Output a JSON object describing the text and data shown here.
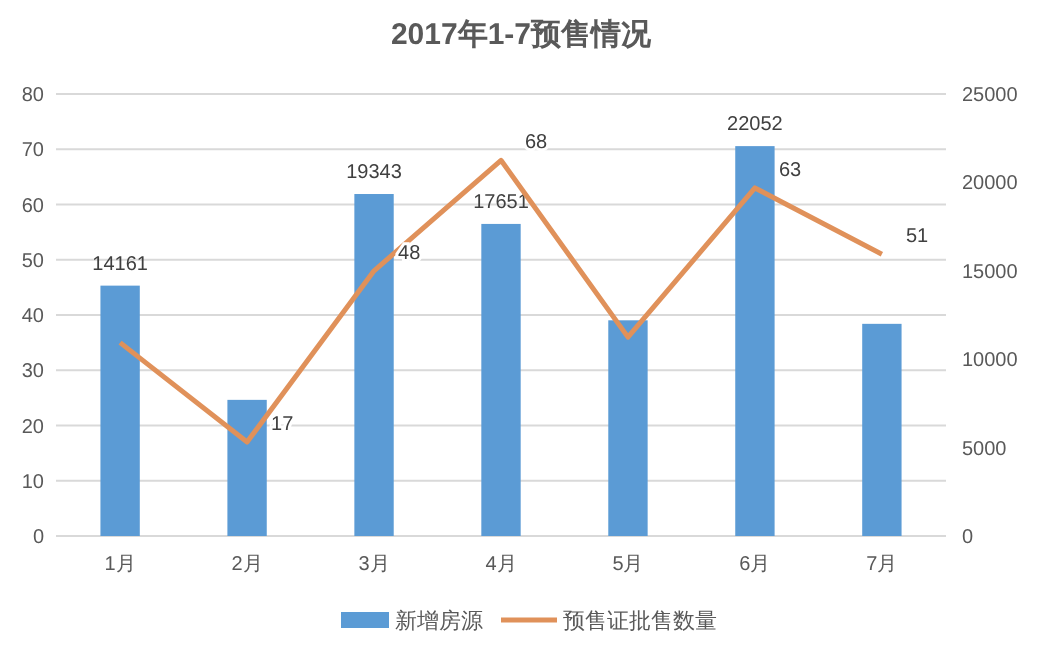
{
  "chart_data": {
    "type": "bar",
    "title": "2017年1-7预售情况",
    "categories": [
      "1月",
      "2月",
      "3月",
      "4月",
      "5月",
      "6月",
      "7月"
    ],
    "series": [
      {
        "name": "新增房源",
        "axis": "y2",
        "color": "#5b9bd5",
        "values": [
          14161,
          7700,
          19343,
          17651,
          12200,
          22052,
          12000
        ],
        "value_labels": [
          "14161",
          null,
          "19343",
          "17651",
          null,
          "22052",
          null
        ]
      },
      {
        "name": "预售证批售数量",
        "type": "line",
        "color": "#e0915a",
        "values": [
          35,
          17,
          48,
          68,
          36,
          63,
          51
        ],
        "value_labels": [
          null,
          "17",
          "48",
          "68",
          null,
          "63",
          "51"
        ]
      }
    ],
    "ylim": [
      0,
      80
    ],
    "yticks": [
      0,
      10,
      20,
      30,
      40,
      50,
      60,
      70,
      80
    ],
    "y2lim": [
      0,
      25000
    ],
    "y2ticks": [
      0,
      5000,
      10000,
      15000,
      20000,
      25000
    ],
    "grid": "y",
    "legend": "bottom",
    "marker": "none"
  }
}
